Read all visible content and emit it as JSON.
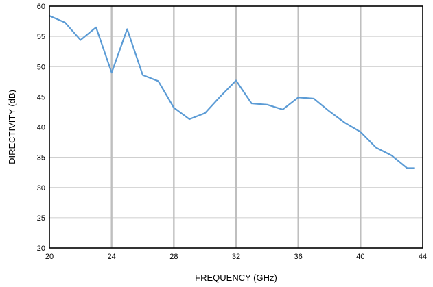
{
  "chart_data": {
    "type": "line",
    "title": "",
    "xlabel": "FREQUENCY (GHz)",
    "ylabel": "DIRECTIVITY (dB)",
    "xlim": [
      20,
      44
    ],
    "ylim": [
      20,
      60
    ],
    "xticks": [
      20,
      24,
      28,
      32,
      36,
      40,
      44
    ],
    "yticks": [
      20,
      25,
      30,
      35,
      40,
      45,
      50,
      55,
      60
    ],
    "grid": "vertical",
    "legend": "none",
    "colors": {
      "line": "#5b9bd5",
      "grid": "#bfbfbf",
      "frame": "#000000"
    },
    "series": [
      {
        "x": [
          20,
          21,
          22,
          23,
          24,
          25,
          26,
          27,
          28,
          29,
          30,
          31,
          32,
          33,
          34,
          35,
          36,
          37,
          38,
          39,
          40,
          41,
          42,
          43,
          43.5
        ],
        "values": [
          58.4,
          57.3,
          54.4,
          56.5,
          49.0,
          56.2,
          48.6,
          47.6,
          43.2,
          41.3,
          42.3,
          45.1,
          47.7,
          43.9,
          43.7,
          42.9,
          44.9,
          44.7,
          42.6,
          40.7,
          39.2,
          36.6,
          35.3,
          33.2,
          33.2
        ]
      }
    ]
  }
}
